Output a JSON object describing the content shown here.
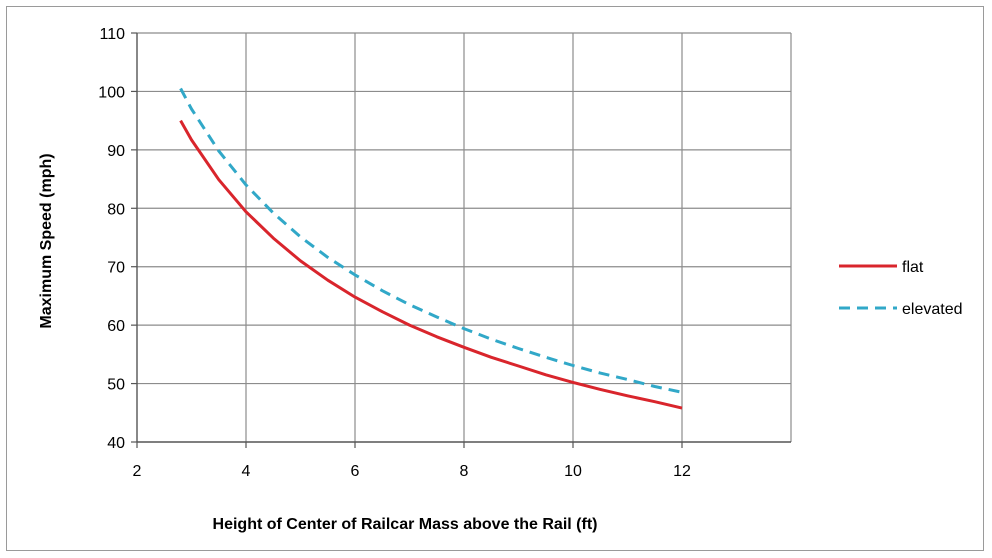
{
  "chart_data": {
    "type": "line",
    "title": "",
    "xlabel": "Height of Center of Railcar Mass above the Rail (ft)",
    "ylabel": "Maximum Speed (mph)",
    "xlim": [
      2,
      14
    ],
    "ylim": [
      40,
      110
    ],
    "xticks": [
      2,
      4,
      6,
      8,
      10,
      12
    ],
    "yticks": [
      40,
      50,
      60,
      70,
      80,
      90,
      100,
      110
    ],
    "grid": true,
    "legend_position": "right",
    "series": [
      {
        "name": "flat",
        "color": "#d9252c",
        "dash": "solid",
        "x": [
          2.8,
          3.0,
          3.5,
          4.0,
          4.5,
          5.0,
          5.5,
          6.0,
          6.5,
          7.0,
          7.5,
          8.0,
          8.5,
          9.0,
          9.5,
          10.0,
          10.5,
          11.0,
          11.5,
          12.0
        ],
        "y": [
          95.0,
          91.7,
          84.9,
          79.4,
          74.9,
          71.0,
          67.7,
          64.8,
          62.3,
          60.0,
          58.0,
          56.2,
          54.5,
          53.0,
          51.5,
          50.2,
          49.0,
          47.9,
          46.9,
          45.8
        ]
      },
      {
        "name": "elevated",
        "color": "#31a8c8",
        "dash": "dashed",
        "x": [
          2.8,
          3.0,
          3.5,
          4.0,
          4.5,
          5.0,
          5.5,
          6.0,
          6.5,
          7.0,
          7.5,
          8.0,
          8.5,
          9.0,
          9.5,
          10.0,
          10.5,
          11.0,
          11.5,
          12.0
        ],
        "y": [
          100.5,
          97.0,
          89.8,
          84.0,
          79.2,
          75.1,
          71.6,
          68.6,
          65.9,
          63.5,
          61.4,
          59.4,
          57.6,
          56.0,
          54.5,
          53.1,
          51.8,
          50.7,
          49.5,
          48.5
        ]
      }
    ]
  }
}
